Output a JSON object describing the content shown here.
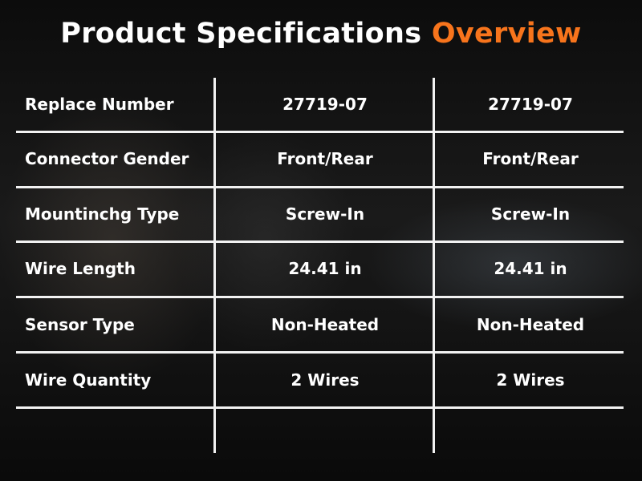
{
  "title": {
    "main": "Product Specifications",
    "accent": "Overview",
    "accent_color": "#f7741c"
  },
  "table": {
    "rows": [
      {
        "label": "Replace Number",
        "values": [
          "27719-07",
          "27719-07"
        ]
      },
      {
        "label": "Connector Gender",
        "values": [
          "Front/Rear",
          "Front/Rear"
        ]
      },
      {
        "label": "Mountinchg Type",
        "values": [
          "Screw-In",
          "Screw-In"
        ]
      },
      {
        "label": "Wire Length",
        "values": [
          "24.41 in",
          "24.41 in"
        ]
      },
      {
        "label": "Sensor Type",
        "values": [
          "Non-Heated",
          "Non-Heated"
        ]
      },
      {
        "label": "Wire Quantity",
        "values": [
          "2 Wires",
          "2 Wires"
        ]
      }
    ]
  }
}
